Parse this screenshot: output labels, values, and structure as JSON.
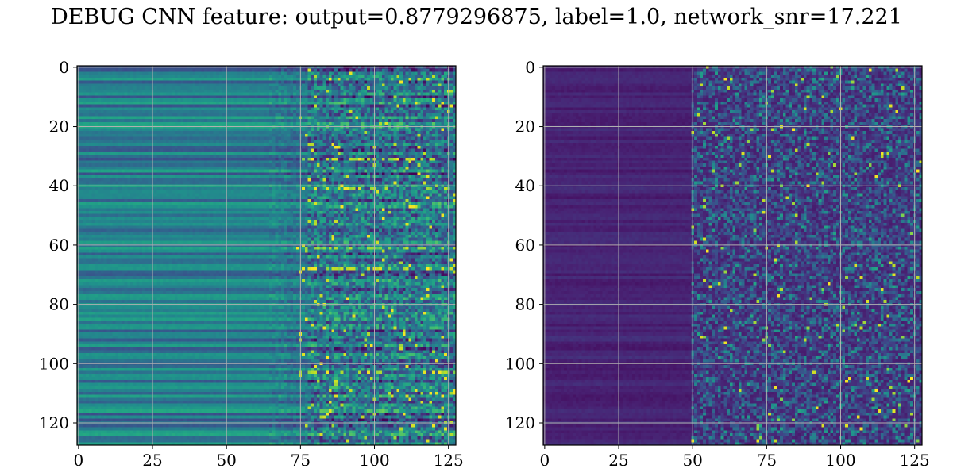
{
  "title": "DEBUG CNN feature: output=0.8779296875, label=1.0, network_snr=17.221",
  "chart_data": [
    {
      "type": "heatmap",
      "colormap": "viridis",
      "rows": 128,
      "cols": 128,
      "xlim": [
        0,
        127
      ],
      "ylim": [
        127,
        0
      ],
      "xticks": [
        "0",
        "25",
        "50",
        "75",
        "100",
        "125"
      ],
      "yticks": [
        "0",
        "20",
        "40",
        "60",
        "80",
        "100",
        "120"
      ],
      "grid": true,
      "description_of_values": "Left panel: smooth horizontal row bands (teal/green) for columns 0-70, noisy high-contrast values for columns 75-127 with bright yellow spots near rows 61, 68, 103."
    },
    {
      "type": "heatmap",
      "colormap": "viridis",
      "rows": 128,
      "cols": 128,
      "xlim": [
        0,
        127
      ],
      "ylim": [
        127,
        0
      ],
      "xticks": [
        "0",
        "25",
        "50",
        "75",
        "100",
        "125"
      ],
      "yticks": [
        "0",
        "20",
        "40",
        "60",
        "80",
        "100",
        "120"
      ],
      "grid": true,
      "description_of_values": "Right panel: mostly dark purple low values for columns 0-50, sparse noisy teal/green values for columns 50-127 with a few yellow peaks near (89,40), (92,115)."
    }
  ],
  "colors": {
    "grid": "#b0b0b0",
    "axis": "#000000"
  }
}
